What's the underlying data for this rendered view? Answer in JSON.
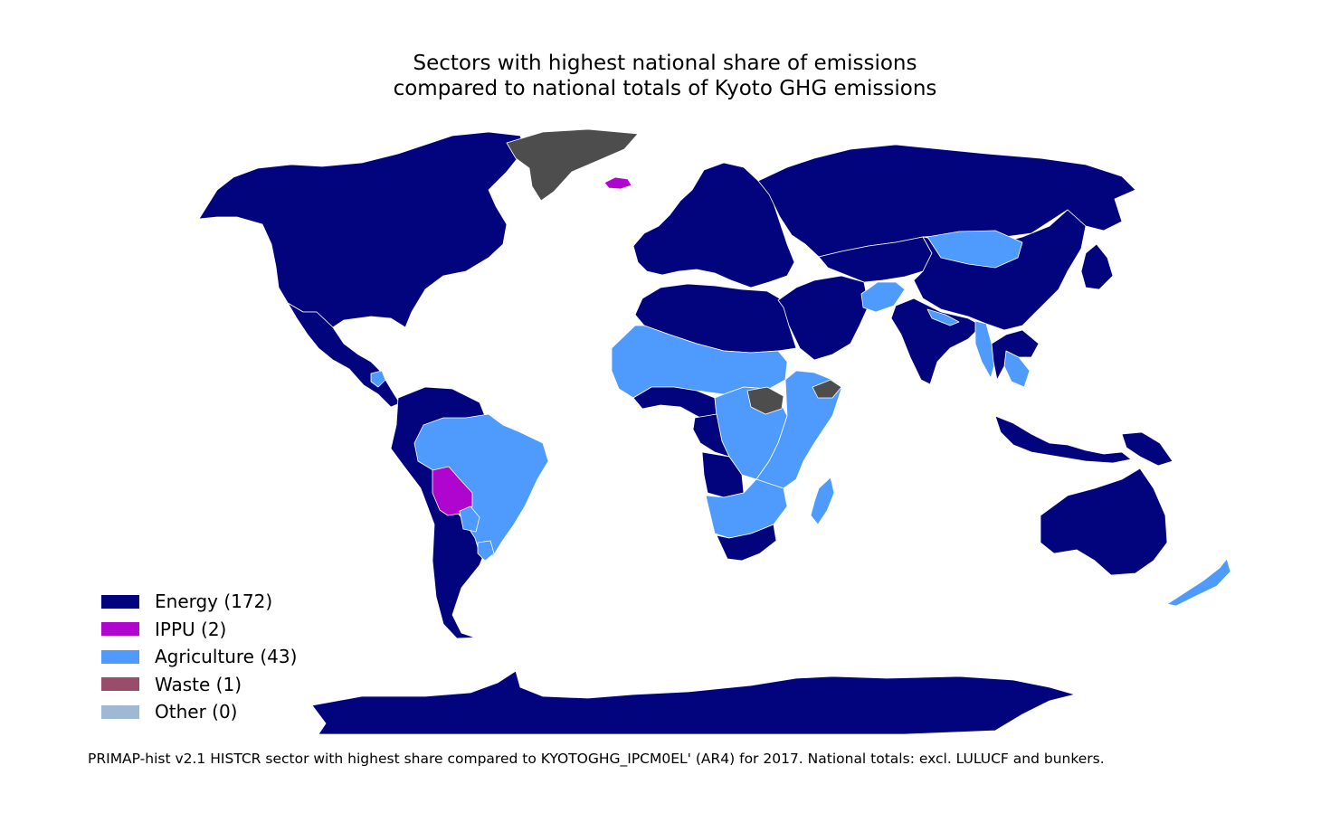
{
  "title": {
    "line1": "Sectors with highest national share of emissions",
    "line2": "compared to national totals of Kyoto GHG emissions"
  },
  "legend": [
    {
      "key": "energy",
      "label": "Energy (172)",
      "color": "#02047e"
    },
    {
      "key": "ippu",
      "label": "IPPU (2)",
      "color": "#b005cf"
    },
    {
      "key": "agriculture",
      "label": "Agriculture (43)",
      "color": "#4e9bfd"
    },
    {
      "key": "waste",
      "label": "Waste (1)",
      "color": "#9a4d6a"
    },
    {
      "key": "other",
      "label": "Other (0)",
      "color": "#9fb8d4"
    }
  ],
  "colors": {
    "energy": "#02047e",
    "ippu": "#b005cf",
    "agriculture": "#4e9bfd",
    "no_data": "#4d4d4d",
    "background": "#ffffff",
    "border": "#ffffff"
  },
  "map_regions": [
    {
      "name": "north-america",
      "sector": "energy"
    },
    {
      "name": "greenland",
      "sector": "no_data"
    },
    {
      "name": "iceland",
      "sector": "ippu"
    },
    {
      "name": "central-america",
      "sector": "energy"
    },
    {
      "name": "nicaragua",
      "sector": "agriculture"
    },
    {
      "name": "south-america",
      "sector": "energy"
    },
    {
      "name": "brazil",
      "sector": "agriculture"
    },
    {
      "name": "bolivia",
      "sector": "ippu"
    },
    {
      "name": "paraguay",
      "sector": "agriculture"
    },
    {
      "name": "uruguay",
      "sector": "agriculture"
    },
    {
      "name": "europe",
      "sector": "energy"
    },
    {
      "name": "russia",
      "sector": "energy"
    },
    {
      "name": "north-africa",
      "sector": "energy"
    },
    {
      "name": "sahel-west-africa",
      "sector": "agriculture"
    },
    {
      "name": "gulf-of-guinea",
      "sector": "energy"
    },
    {
      "name": "central-africa",
      "sector": "agriculture"
    },
    {
      "name": "congo-gabon",
      "sector": "energy"
    },
    {
      "name": "east-africa",
      "sector": "agriculture"
    },
    {
      "name": "south-sudan",
      "sector": "no_data"
    },
    {
      "name": "somalia",
      "sector": "no_data"
    },
    {
      "name": "angola",
      "sector": "energy"
    },
    {
      "name": "southern-africa-agri",
      "sector": "agriculture"
    },
    {
      "name": "south-africa",
      "sector": "energy"
    },
    {
      "name": "madagascar",
      "sector": "agriculture"
    },
    {
      "name": "middle-east",
      "sector": "energy"
    },
    {
      "name": "central-asia",
      "sector": "energy"
    },
    {
      "name": "afghanistan",
      "sector": "agriculture"
    },
    {
      "name": "south-asia",
      "sector": "energy"
    },
    {
      "name": "nepal",
      "sector": "agriculture"
    },
    {
      "name": "china",
      "sector": "energy"
    },
    {
      "name": "mongolia",
      "sector": "agriculture"
    },
    {
      "name": "myanmar",
      "sector": "agriculture"
    },
    {
      "name": "cambodia-laos",
      "sector": "agriculture"
    },
    {
      "name": "southeast-asia",
      "sector": "energy"
    },
    {
      "name": "japan-korea",
      "sector": "energy"
    },
    {
      "name": "indonesia",
      "sector": "energy"
    },
    {
      "name": "papua-new-guinea",
      "sector": "energy"
    },
    {
      "name": "australia",
      "sector": "energy"
    },
    {
      "name": "new-zealand",
      "sector": "agriculture"
    },
    {
      "name": "antarctica",
      "sector": "energy"
    }
  ],
  "footnote": "PRIMAP-hist v2.1 HISTCR sector with highest share compared to KYOTOGHG_IPCM0EL' (AR4) for 2017. National totals: excl. LULUCF and bunkers."
}
